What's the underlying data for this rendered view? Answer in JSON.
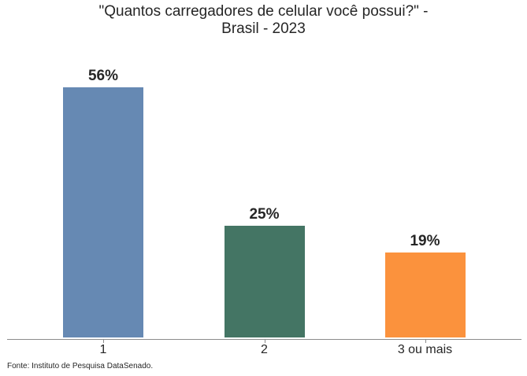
{
  "chart_data": {
    "type": "bar",
    "title": "\"Quantos carregadores de celular você possui?\" - Brasil - 2023",
    "title_lines": [
      "\"Quantos carregadores de celular você possui?\" -",
      "Brasil - 2023"
    ],
    "categories": [
      "1",
      "2",
      "3 ou mais"
    ],
    "values": [
      56,
      25,
      19
    ],
    "value_labels": [
      "56%",
      "25%",
      "19%"
    ],
    "colors": [
      "#6689b3",
      "#447564",
      "#fb923d"
    ],
    "xlabel": "",
    "ylabel": "",
    "ylim": [
      0,
      60
    ],
    "grid": false,
    "legend": null,
    "source": "Fonte: Instituto de Pesquisa DataSenado."
  }
}
